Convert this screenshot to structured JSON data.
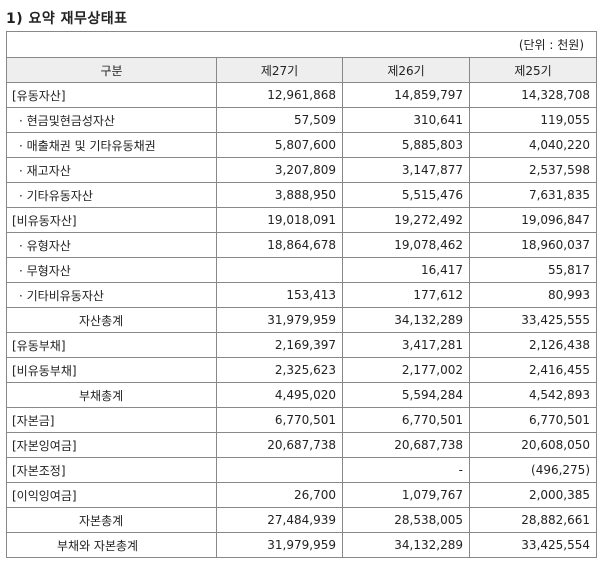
{
  "title": "1) 요약 재무상태표",
  "unit": "(단위 : 천원)",
  "columns": [
    "구분",
    "제27기",
    "제26기",
    "제25기"
  ],
  "rows": [
    {
      "label": "[유동자산]",
      "style": "plain",
      "values": [
        "12,961,868",
        "14,859,797",
        "14,328,708"
      ]
    },
    {
      "label": "· 현금및현금성자산",
      "style": "bullet",
      "values": [
        "57,509",
        "310,641",
        "119,055"
      ]
    },
    {
      "label": "· 매출채권 및 기타유동채권",
      "style": "bullet",
      "values": [
        "5,807,600",
        "5,885,803",
        "4,040,220"
      ]
    },
    {
      "label": "· 재고자산",
      "style": "bullet",
      "values": [
        "3,207,809",
        "3,147,877",
        "2,537,598"
      ]
    },
    {
      "label": "· 기타유동자산",
      "style": "bullet",
      "values": [
        "3,888,950",
        "5,515,476",
        "7,631,835"
      ]
    },
    {
      "label": "[비유동자산]",
      "style": "plain",
      "values": [
        "19,018,091",
        "19,272,492",
        "19,096,847"
      ]
    },
    {
      "label": "· 유형자산",
      "style": "bullet",
      "values": [
        "18,864,678",
        "19,078,462",
        "18,960,037"
      ]
    },
    {
      "label": "· 무형자산",
      "style": "bullet",
      "values": [
        "",
        "16,417",
        "55,817"
      ]
    },
    {
      "label": "· 기타비유동자산",
      "style": "bullet",
      "values": [
        "153,413",
        "177,612",
        "80,993"
      ]
    },
    {
      "label": "자산총계",
      "style": "indent1",
      "values": [
        "31,979,959",
        "34,132,289",
        "33,425,555"
      ]
    },
    {
      "label": "[유동부채]",
      "style": "plain",
      "values": [
        "2,169,397",
        "3,417,281",
        "2,126,438"
      ]
    },
    {
      "label": "[비유동부채]",
      "style": "plain",
      "values": [
        "2,325,623",
        "2,177,002",
        "2,416,455"
      ]
    },
    {
      "label": "부채총계",
      "style": "indent1",
      "values": [
        "4,495,020",
        "5,594,284",
        "4,542,893"
      ]
    },
    {
      "label": "[자본금]",
      "style": "plain",
      "values": [
        "6,770,501",
        "6,770,501",
        "6,770,501"
      ]
    },
    {
      "label": "[자본잉여금]",
      "style": "plain",
      "values": [
        "20,687,738",
        "20,687,738",
        "20,608,050"
      ]
    },
    {
      "label": "[자본조정]",
      "style": "plain",
      "values": [
        "",
        "-",
        "(496,275)"
      ]
    },
    {
      "label": "[이익잉여금]",
      "style": "plain",
      "values": [
        "26,700",
        "1,079,767",
        "2,000,385"
      ]
    },
    {
      "label": "자본총계",
      "style": "indent1",
      "values": [
        "27,484,939",
        "28,538,005",
        "28,882,661"
      ]
    },
    {
      "label": "부채와 자본총계",
      "style": "indent2",
      "values": [
        "31,979,959",
        "34,132,289",
        "33,425,554"
      ]
    }
  ]
}
